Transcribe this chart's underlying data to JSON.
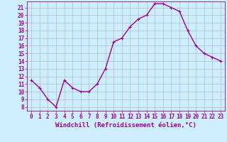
{
  "x": [
    0,
    1,
    2,
    3,
    4,
    5,
    6,
    7,
    8,
    9,
    10,
    11,
    12,
    13,
    14,
    15,
    16,
    17,
    18,
    19,
    20,
    21,
    22,
    23
  ],
  "y": [
    11.5,
    10.5,
    9.0,
    8.0,
    11.5,
    10.5,
    10.0,
    10.0,
    11.0,
    13.0,
    16.5,
    17.0,
    18.5,
    19.5,
    20.0,
    21.5,
    21.5,
    21.0,
    20.5,
    18.0,
    16.0,
    15.0,
    14.5,
    14.0
  ],
  "line_color": "#990099",
  "marker": "+",
  "marker_size": 3,
  "background_color": "#cceeff",
  "grid_color": "#aaaacc",
  "xlabel": "Windchill (Refroidissement éolien,°C)",
  "ylabel": "",
  "xlim": [
    -0.5,
    23.5
  ],
  "ylim": [
    7.5,
    21.8
  ],
  "yticks": [
    8,
    9,
    10,
    11,
    12,
    13,
    14,
    15,
    16,
    17,
    18,
    19,
    20,
    21
  ],
  "xticks": [
    0,
    1,
    2,
    3,
    4,
    5,
    6,
    7,
    8,
    9,
    10,
    11,
    12,
    13,
    14,
    15,
    16,
    17,
    18,
    19,
    20,
    21,
    22,
    23
  ],
  "tick_color": "#990099",
  "label_color": "#990099",
  "tick_fontsize": 5.5,
  "xlabel_fontsize": 6.5,
  "line_width": 1.0,
  "marker_edge_width": 0.8
}
